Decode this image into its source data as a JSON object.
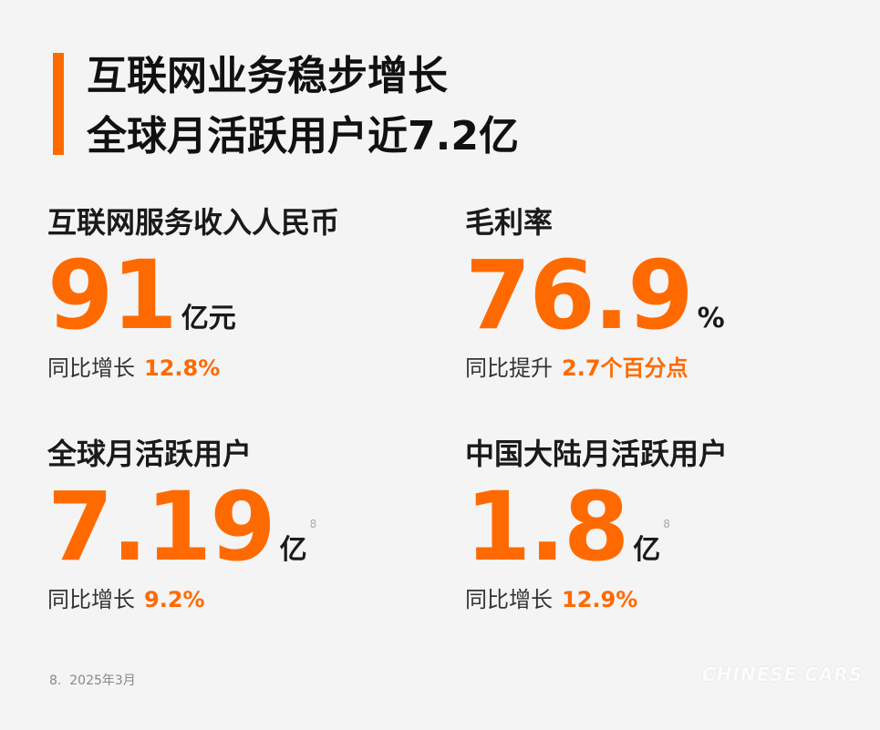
{
  "header": {
    "title_lines": [
      "互联网业务稳步增长",
      "全球月活跃用户近7.2亿"
    ]
  },
  "metrics": [
    {
      "label": "互联网服务收入人民币",
      "value": "91",
      "unit": "亿元",
      "growth_label": "同比增长",
      "growth_value": "12.8%"
    },
    {
      "label": "毛利率",
      "value": "76.9",
      "unit": "%",
      "growth_label": "同比提升",
      "growth_value": "2.7个百分点"
    },
    {
      "label": "全球月活跃用户",
      "value": "7.19",
      "unit": "亿",
      "footnote": "8",
      "growth_label": "同比增长",
      "growth_value": "9.2%"
    },
    {
      "label": "中国大陆月活跃用户",
      "value": "1.8",
      "unit": "亿",
      "footnote": "8",
      "growth_label": "同比增长",
      "growth_value": "12.9%"
    }
  ],
  "footer": {
    "note": "8.  2025年3月",
    "watermark": "CHINESE CARS"
  }
}
